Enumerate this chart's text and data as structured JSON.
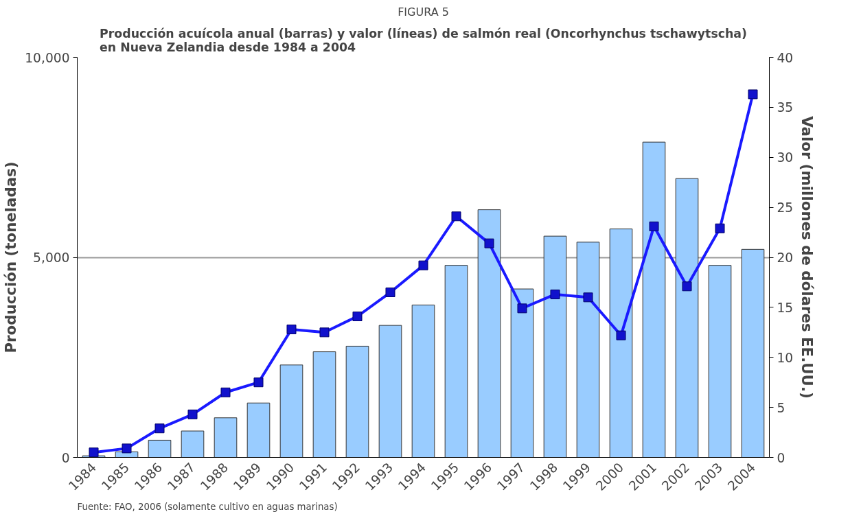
{
  "chart_data": {
    "type": "bar",
    "title": "FIGURA 5",
    "subtitle": "Producción acuícola anual (barras) y valor (líneas) de salmón real (Oncorhynchus tschawytscha)\nen Nueva Zelandia desde 1984 a 2004",
    "categories": [
      "1984",
      "1985",
      "1986",
      "1987",
      "1988",
      "1989",
      "1990",
      "1991",
      "1992",
      "1993",
      "1994",
      "1995",
      "1996",
      "1997",
      "1998",
      "1999",
      "2000",
      "2001",
      "2002",
      "2003",
      "2004"
    ],
    "series": [
      {
        "color": "#99ccff",
        "values": [
          40,
          140,
          430,
          660,
          990,
          1360,
          2310,
          2640,
          2780,
          3300,
          3810,
          4800,
          6190,
          4210,
          5530,
          5380,
          5710,
          7880,
          6970,
          4800,
          5200
        ]
      },
      {
        "type": "line",
        "axis": "y2",
        "color": "#1a1aff",
        "marker": "square",
        "values": [
          0.5,
          0.9,
          2.9,
          4.3,
          6.5,
          7.5,
          12.8,
          12.5,
          14.1,
          16.5,
          19.2,
          24.1,
          21.4,
          14.9,
          16.3,
          16.0,
          12.2,
          23.1,
          17.1,
          22.9,
          36.3
        ]
      }
    ],
    "ylabel": "Producción (toneladas)",
    "y2label": "Valor (millones de dólares EE.UU.)",
    "ylim": [
      0,
      10000
    ],
    "yticks": [
      {
        "value": 0,
        "label": "0"
      },
      {
        "value": 5000,
        "label": "5,000"
      },
      {
        "value": 10000,
        "label": "10,000"
      }
    ],
    "y2lim": [
      0,
      40
    ],
    "y2ticks": [
      0,
      5,
      10,
      15,
      20,
      25,
      30,
      35,
      40
    ],
    "grid": "y",
    "annotations": [
      "Fuente: FAO, 2006 (solamente cultivo en aguas marinas)"
    ]
  }
}
